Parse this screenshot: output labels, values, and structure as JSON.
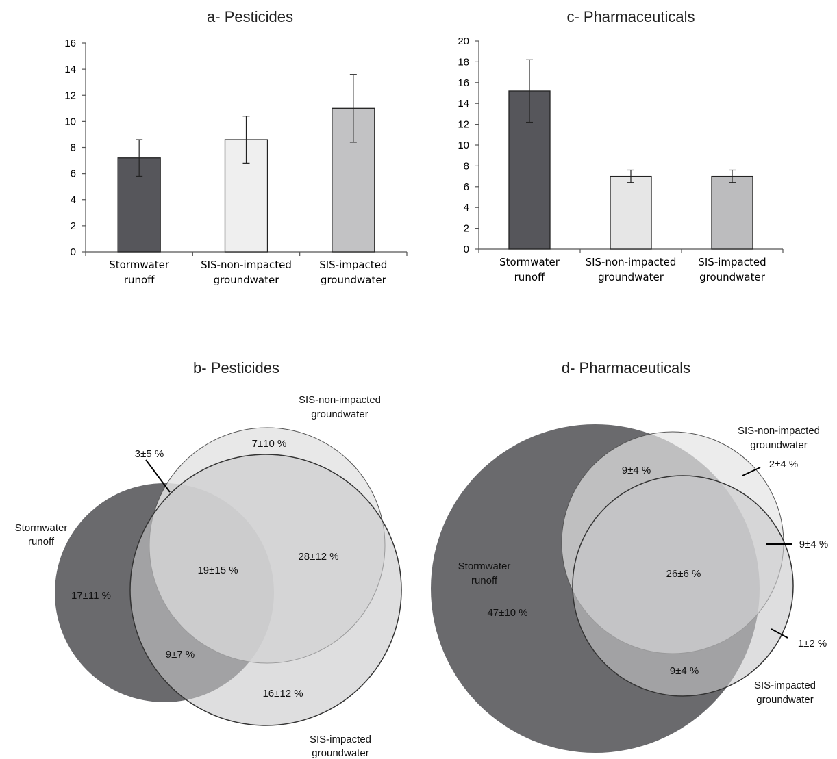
{
  "chart_data": [
    {
      "type": "bar",
      "title": "a- Pesticides",
      "categories": [
        [
          "Stormwater",
          "runoff"
        ],
        [
          "SIS-non-impacted",
          "groundwater"
        ],
        [
          "SIS-impacted",
          "groundwater"
        ]
      ],
      "values": [
        7.2,
        8.6,
        11.0
      ],
      "error_low": [
        5.8,
        6.8,
        8.4
      ],
      "error_high": [
        8.6,
        10.4,
        13.6
      ],
      "bar_colors": [
        "#56565b",
        "#efefef",
        "#c2c2c4"
      ],
      "ylim": [
        0,
        16
      ],
      "yticks": [
        "0",
        "2",
        "4",
        "6",
        "8",
        "10",
        "12",
        "14",
        "16"
      ],
      "xlabel": "",
      "ylabel": "",
      "grid": false
    },
    {
      "type": "bar",
      "title": "c- Pharmaceuticals",
      "categories": [
        [
          "Stormwater",
          "runoff"
        ],
        [
          "SIS-non-impacted",
          "groundwater"
        ],
        [
          "SIS-impacted",
          "groundwater"
        ]
      ],
      "values": [
        15.2,
        7.0,
        7.0
      ],
      "error_low": [
        12.2,
        6.4,
        6.4
      ],
      "error_high": [
        18.2,
        7.6,
        7.6
      ],
      "bar_colors": [
        "#56565b",
        "#e6e6e6",
        "#bcbcbe"
      ],
      "ylim": [
        0,
        20
      ],
      "yticks": [
        "0",
        "2",
        "4",
        "6",
        "8",
        "10",
        "12",
        "14",
        "16",
        "18",
        "20"
      ],
      "xlabel": "",
      "ylabel": "",
      "grid": false
    },
    {
      "type": "venn",
      "title": "b- Pesticides",
      "sets": [
        {
          "name": [
            "Stormwater",
            "runoff"
          ],
          "color": "#6a6a6d"
        },
        {
          "name": [
            "SIS-non-impacted",
            "groundwater"
          ],
          "color": "#e4e4e4"
        },
        {
          "name": [
            "SIS-impacted",
            "groundwater"
          ],
          "color": "#c8c8ca"
        }
      ],
      "regions": [
        {
          "label": "17±11 %"
        },
        {
          "label": "7±10 %"
        },
        {
          "label": "16±12 %"
        },
        {
          "label": "3±5 %"
        },
        {
          "label": "9±7 %"
        },
        {
          "label": "28±12 %"
        },
        {
          "label": "19±15 %"
        }
      ]
    },
    {
      "type": "venn",
      "title": "d- Pharmaceuticals",
      "sets": [
        {
          "name": [
            "Stormwater",
            "runoff"
          ],
          "color": "#6a6a6d"
        },
        {
          "name": [
            "SIS-non-impacted",
            "groundwater"
          ],
          "color": "#e4e4e4"
        },
        {
          "name": [
            "SIS-impacted",
            "groundwater"
          ],
          "color": "#c8c8ca"
        }
      ],
      "regions": [
        {
          "label": "47±10 %"
        },
        {
          "label": "2±4 %"
        },
        {
          "label": "1±2 %"
        },
        {
          "label": "9±4 %"
        },
        {
          "label": "9±4 %"
        },
        {
          "label": "9±4 %"
        },
        {
          "label": "26±6 %"
        }
      ]
    }
  ]
}
